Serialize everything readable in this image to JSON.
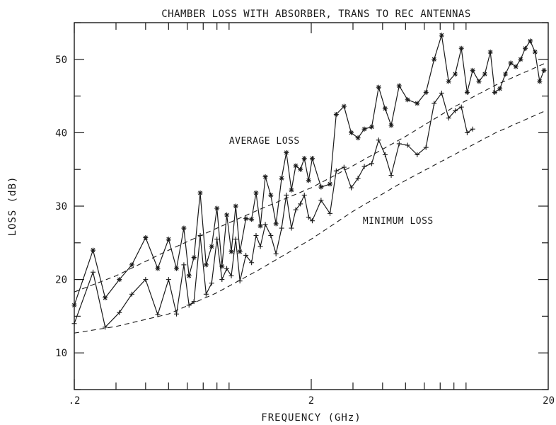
{
  "chart_data": {
    "type": "line",
    "title": "CHAMBER LOSS WITH ABSORBER, TRANS TO REC ANTENNAS",
    "xlabel": "FREQUENCY (GHz)",
    "ylabel": "LOSS (dB)",
    "xscale": "log",
    "xlim": [
      0.2,
      20
    ],
    "ylim": [
      5,
      55
    ],
    "x_tick_labels": [
      ".2",
      "2",
      "20"
    ],
    "x_tick_values": [
      0.2,
      2,
      20
    ],
    "y_ticks": [
      10,
      20,
      30,
      40,
      50
    ],
    "grid": false,
    "annotations": [
      {
        "text": "AVERAGE LOSS",
        "x": 0.9,
        "y": 38.5
      },
      {
        "text": "MINIMUM LOSS",
        "x": 3.3,
        "y": 27.6
      }
    ],
    "series": [
      {
        "label": "AVERAGE LOSS",
        "marker": "asterisk",
        "x": [
          0.2,
          0.24,
          0.27,
          0.31,
          0.35,
          0.4,
          0.45,
          0.5,
          0.54,
          0.58,
          0.61,
          0.64,
          0.68,
          0.72,
          0.76,
          0.8,
          0.84,
          0.88,
          0.92,
          0.96,
          1.0,
          1.06,
          1.12,
          1.17,
          1.22,
          1.28,
          1.35,
          1.42,
          1.5,
          1.57,
          1.65,
          1.72,
          1.8,
          1.87,
          1.95,
          2.02,
          2.2,
          2.4,
          2.55,
          2.75,
          2.95,
          3.15,
          3.35,
          3.6,
          3.85,
          4.1,
          4.35,
          4.7,
          5.1,
          5.6,
          6.1,
          6.6,
          7.1,
          7.6,
          8.1,
          8.6,
          9.1,
          9.6,
          10.2,
          10.8,
          11.4,
          11.9,
          12.5,
          13.2,
          13.9,
          14.6,
          15.3,
          16.0,
          16.8,
          17.6,
          18.4,
          19.2
        ],
        "y": [
          16.5,
          24.0,
          17.5,
          20.0,
          22.0,
          25.7,
          21.5,
          25.5,
          21.5,
          27.0,
          20.5,
          23.0,
          31.8,
          22.0,
          24.5,
          29.7,
          21.8,
          28.8,
          23.8,
          30.0,
          23.8,
          28.3,
          28.2,
          31.8,
          27.3,
          34.0,
          31.5,
          27.6,
          33.8,
          37.3,
          32.2,
          35.5,
          35.0,
          36.5,
          33.5,
          36.5,
          32.6,
          33.0,
          42.5,
          43.6,
          40.0,
          39.3,
          40.5,
          40.8,
          46.2,
          43.3,
          41.0,
          46.4,
          44.5,
          44.0,
          45.5,
          50.0,
          53.3,
          47.0,
          48.0,
          51.5,
          45.5,
          48.5,
          47.0,
          48.0,
          51.0,
          45.5,
          46.0,
          48.0,
          49.5,
          49.0,
          50.0,
          51.5,
          52.5,
          51.0,
          47.0,
          48.5
        ]
      },
      {
        "label": "MINIMUM LOSS",
        "marker": "cross",
        "x": [
          0.2,
          0.24,
          0.27,
          0.31,
          0.35,
          0.4,
          0.45,
          0.5,
          0.54,
          0.58,
          0.61,
          0.64,
          0.68,
          0.72,
          0.76,
          0.8,
          0.84,
          0.88,
          0.92,
          0.96,
          1.0,
          1.06,
          1.12,
          1.17,
          1.22,
          1.28,
          1.35,
          1.42,
          1.5,
          1.57,
          1.65,
          1.72,
          1.8,
          1.87,
          1.95,
          2.02,
          2.2,
          2.4,
          2.55,
          2.75,
          2.95,
          3.15,
          3.35,
          3.6,
          3.85,
          4.1,
          4.35,
          4.7,
          5.1,
          5.6,
          6.1,
          6.6,
          7.1,
          7.6,
          8.1,
          8.6,
          9.1,
          9.6
        ],
        "y": [
          14.0,
          21.0,
          13.5,
          15.5,
          18.0,
          20.0,
          15.2,
          20.0,
          15.3,
          22.0,
          16.5,
          17.0,
          26.0,
          18.0,
          19.5,
          25.5,
          20.0,
          21.5,
          20.5,
          25.5,
          19.8,
          23.3,
          22.3,
          26.0,
          24.5,
          27.5,
          26.0,
          23.5,
          27.0,
          31.5,
          27.0,
          29.5,
          30.3,
          31.5,
          28.5,
          28.0,
          30.8,
          29.0,
          34.8,
          35.3,
          32.5,
          33.8,
          35.4,
          35.8,
          39.0,
          37.0,
          34.2,
          38.5,
          38.3,
          37.0,
          38.0,
          44.0,
          45.4,
          42.0,
          43.0,
          43.5,
          40.0,
          40.5
        ]
      },
      {
        "label": "average trend",
        "style": "dashed",
        "x": [
          0.2,
          0.3,
          0.5,
          0.8,
          1.2,
          2.0,
          3.0,
          5.0,
          8.0,
          12.0,
          19.5
        ],
        "y": [
          18.3,
          20.5,
          24.0,
          27.0,
          29.5,
          32.5,
          35.5,
          39.5,
          43.5,
          46.5,
          49.5
        ]
      },
      {
        "label": "minimum trend",
        "style": "dashed",
        "x": [
          0.2,
          0.3,
          0.5,
          0.8,
          1.2,
          2.0,
          3.0,
          5.0,
          8.0,
          12.0,
          19.5
        ],
        "y": [
          12.7,
          13.6,
          15.3,
          18.2,
          21.3,
          25.5,
          29.3,
          33.5,
          37.0,
          40.0,
          43.0
        ]
      }
    ]
  }
}
